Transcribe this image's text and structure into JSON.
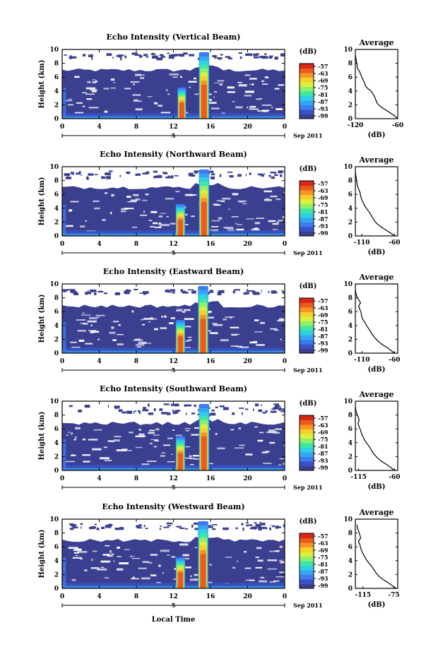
{
  "figure": {
    "xlabel": "Local Time",
    "date_label": "Sep 2011",
    "date_day": "5"
  },
  "colorbar": {
    "unit": "(dB)",
    "ticks": [
      "-57",
      "-63",
      "-69",
      "-75",
      "-81",
      "-87",
      "-93",
      "-99"
    ],
    "colors": [
      "#3b3f8f",
      "#3a52c6",
      "#3d7bf0",
      "#35a7f2",
      "#2fd0e0",
      "#3fe6a8",
      "#8ef06a",
      "#d9f03c",
      "#f7cf2a",
      "#f59624",
      "#ec5a1f",
      "#d8261b"
    ]
  },
  "chart_data": [
    {
      "type": "heatmap",
      "title": "Echo Intensity (Vertical Beam)",
      "xlabel": "",
      "ylabel": "Height (km)",
      "x_ticks": [
        "0",
        "4",
        "8",
        "12",
        "16",
        "20",
        "0"
      ],
      "y_ticks": [
        "0",
        "2",
        "4",
        "6",
        "8",
        "10"
      ],
      "xlim": [
        0,
        24
      ],
      "ylim": [
        0,
        10
      ],
      "regions": [
        {
          "kind": "background_echo",
          "x": [
            0,
            24
          ],
          "y_top": 7.0
        },
        {
          "kind": "upper_echo_band",
          "y": [
            8.8,
            9.6
          ]
        },
        {
          "kind": "convective_column",
          "x": [
            12.6,
            13.2
          ],
          "y_top": 4.5
        },
        {
          "kind": "convective_column",
          "x": [
            14.9,
            15.7
          ],
          "y_top": 9.6
        }
      ],
      "avg": {
        "title": "Average",
        "xlabel": "(dB)",
        "x_ticks": [
          "-120",
          "-60"
        ],
        "xlim": [
          -120,
          -60
        ],
        "y_ticks": [
          "0",
          "2",
          "4",
          "6",
          "8",
          "10"
        ],
        "profile_x": [
          -60,
          -63,
          -70,
          -76,
          -84,
          -89,
          -91,
          -93,
          -95,
          -98,
          -103,
          -106,
          -107,
          -110,
          -112,
          -114,
          -117,
          -118,
          -119,
          -120
        ],
        "profile_y": [
          0,
          0.3,
          0.8,
          1.2,
          1.7,
          2.2,
          2.7,
          3.2,
          3.6,
          4.0,
          4.4,
          4.8,
          5.2,
          5.8,
          6.3,
          6.8,
          7.3,
          8.0,
          8.6,
          9.2
        ]
      }
    },
    {
      "type": "heatmap",
      "title": "Echo Intensity (Northward Beam)",
      "xlabel": "",
      "ylabel": "Height (km)",
      "x_ticks": [
        "0",
        "4",
        "8",
        "12",
        "16",
        "20",
        "0"
      ],
      "y_ticks": [
        "0",
        "2",
        "4",
        "6",
        "8",
        "10"
      ],
      "xlim": [
        0,
        24
      ],
      "ylim": [
        0,
        10
      ],
      "regions": [
        {
          "kind": "background_echo",
          "x": [
            0,
            24
          ],
          "y_top": 7.0
        },
        {
          "kind": "upper_echo_band",
          "y": [
            8.5,
            9.5
          ]
        },
        {
          "kind": "convective_column",
          "x": [
            12.4,
            13.1
          ],
          "y_top": 4.6
        },
        {
          "kind": "convective_column",
          "x": [
            14.9,
            15.7
          ],
          "y_top": 9.6
        }
      ],
      "avg": {
        "title": "Average",
        "xlabel": "(dB)",
        "x_ticks": [
          "-110",
          "-60"
        ],
        "xlim": [
          -120,
          -55
        ],
        "y_ticks": [
          "0",
          "2",
          "4",
          "6",
          "8",
          "10"
        ],
        "profile_x": [
          -60,
          -64,
          -72,
          -79,
          -86,
          -91,
          -94,
          -97,
          -100,
          -103,
          -106,
          -108,
          -110,
          -112,
          -113,
          -115,
          -117,
          -118,
          -119,
          -120
        ],
        "profile_y": [
          0,
          0.3,
          0.8,
          1.2,
          1.7,
          2.2,
          2.7,
          3.2,
          3.6,
          4.0,
          4.4,
          4.8,
          5.2,
          5.8,
          6.3,
          6.8,
          7.3,
          8.0,
          8.6,
          9.2
        ]
      }
    },
    {
      "type": "heatmap",
      "title": "Echo Intensity (Eastward Beam)",
      "xlabel": "",
      "ylabel": "Height (km)",
      "x_ticks": [
        "0",
        "4",
        "8",
        "12",
        "16",
        "20",
        "0"
      ],
      "y_ticks": [
        "0",
        "2",
        "4",
        "6",
        "8",
        "10"
      ],
      "xlim": [
        0,
        24
      ],
      "ylim": [
        0,
        10
      ],
      "regions": [
        {
          "kind": "background_echo",
          "x": [
            0,
            24
          ],
          "y_top": 6.8
        },
        {
          "kind": "upper_echo_band",
          "y": [
            8.7,
            9.3
          ]
        },
        {
          "kind": "convective_column",
          "x": [
            12.4,
            13.1
          ],
          "y_top": 4.8
        },
        {
          "kind": "convective_column",
          "x": [
            14.8,
            15.6
          ],
          "y_top": 9.7
        }
      ],
      "avg": {
        "title": "Average",
        "xlabel": "(dB)",
        "x_ticks": [
          "-110",
          "-60"
        ],
        "xlim": [
          -120,
          -55
        ],
        "y_ticks": [
          "0",
          "2",
          "4",
          "6",
          "8",
          "10"
        ],
        "profile_x": [
          -60,
          -64,
          -71,
          -78,
          -85,
          -90,
          -94,
          -97,
          -100,
          -103,
          -105,
          -108,
          -110,
          -111,
          -113,
          -115,
          -112,
          -117,
          -119,
          -120
        ],
        "profile_y": [
          0,
          0.3,
          0.8,
          1.2,
          1.7,
          2.2,
          2.7,
          3.2,
          3.6,
          4.0,
          4.4,
          4.8,
          5.2,
          5.8,
          6.3,
          6.8,
          7.3,
          8.0,
          8.6,
          9.2
        ]
      }
    },
    {
      "type": "heatmap",
      "title": "Echo Intensity (Southward Beam)",
      "xlabel": "",
      "ylabel": "Height (km)",
      "x_ticks": [
        "0",
        "4",
        "8",
        "12",
        "16",
        "20",
        "0"
      ],
      "y_ticks": [
        "0",
        "2",
        "4",
        "6",
        "8",
        "10"
      ],
      "xlim": [
        0,
        24
      ],
      "ylim": [
        0,
        10
      ],
      "regions": [
        {
          "kind": "background_echo",
          "x": [
            0,
            24
          ],
          "y_top": 6.8
        },
        {
          "kind": "upper_echo_band",
          "y": [
            8.2,
            9.7
          ]
        },
        {
          "kind": "convective_column",
          "x": [
            12.4,
            13.1
          ],
          "y_top": 4.9
        },
        {
          "kind": "convective_column",
          "x": [
            14.9,
            15.7
          ],
          "y_top": 9.6
        }
      ],
      "avg": {
        "title": "Average",
        "xlabel": "(dB)",
        "x_ticks": [
          "-115",
          "-60"
        ],
        "xlim": [
          -120,
          -55
        ],
        "y_ticks": [
          "0",
          "2",
          "4",
          "6",
          "8",
          "10"
        ],
        "profile_x": [
          -60,
          -64,
          -71,
          -78,
          -85,
          -90,
          -94,
          -97,
          -100,
          -103,
          -106,
          -108,
          -110,
          -112,
          -114,
          -116,
          -114,
          -117,
          -119,
          -120
        ],
        "profile_y": [
          0,
          0.3,
          0.8,
          1.2,
          1.7,
          2.2,
          2.7,
          3.2,
          3.6,
          4.0,
          4.4,
          4.8,
          5.2,
          5.8,
          6.3,
          6.8,
          7.3,
          8.0,
          8.6,
          9.2
        ]
      }
    },
    {
      "type": "heatmap",
      "title": "Echo Intensity (Westward Beam)",
      "xlabel": "Local Time",
      "ylabel": "Height (km)",
      "x_ticks": [
        "0",
        "4",
        "8",
        "12",
        "16",
        "20",
        "0"
      ],
      "y_ticks": [
        "0",
        "2",
        "4",
        "6",
        "8",
        "10"
      ],
      "xlim": [
        0,
        24
      ],
      "ylim": [
        0,
        10
      ],
      "regions": [
        {
          "kind": "background_echo",
          "x": [
            0,
            24
          ],
          "y_top": 6.9
        },
        {
          "kind": "upper_echo_band",
          "y": [
            8.6,
            9.6
          ]
        },
        {
          "kind": "convective_column",
          "x": [
            12.4,
            13.1
          ],
          "y_top": 4.5
        },
        {
          "kind": "convective_column",
          "x": [
            14.8,
            15.6
          ],
          "y_top": 9.7
        }
      ],
      "avg": {
        "title": "Average",
        "xlabel": "(dB)",
        "x_ticks": [
          "-115",
          "-75"
        ],
        "xlim": [
          -125,
          -70
        ],
        "y_ticks": [
          "0",
          "2",
          "4",
          "6",
          "8",
          "10"
        ],
        "profile_x": [
          -72,
          -76,
          -82,
          -88,
          -94,
          -98,
          -101,
          -104,
          -107,
          -110,
          -112,
          -114,
          -116,
          -118,
          -119,
          -121,
          -118,
          -120,
          -122,
          -123
        ],
        "profile_y": [
          0,
          0.3,
          0.8,
          1.2,
          1.7,
          2.2,
          2.7,
          3.2,
          3.6,
          4.0,
          4.4,
          4.8,
          5.2,
          5.8,
          6.3,
          6.8,
          7.3,
          8.0,
          8.6,
          9.2
        ]
      }
    }
  ]
}
